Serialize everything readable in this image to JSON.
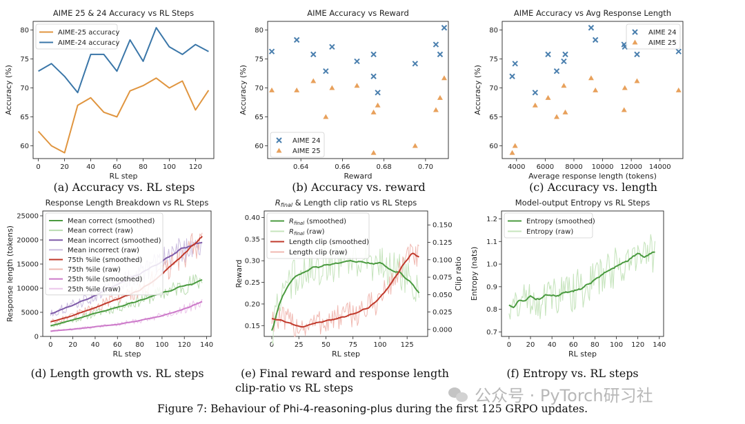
{
  "chart_data": [
    {
      "id": "a",
      "type": "line",
      "title": "AIME 25 & 24 Accuracy vs RL Steps",
      "xlabel": "RL step",
      "ylabel": "Accuracy (%)",
      "xlim": [
        -4,
        134
      ],
      "ylim": [
        57.8,
        81.5
      ],
      "xticks": [
        0,
        20,
        40,
        60,
        80,
        100,
        120
      ],
      "yticks": [
        60,
        65,
        70,
        75,
        80
      ],
      "legend": "top-left",
      "series": [
        {
          "name": "AIME-25 accuracy",
          "color": "#e0953f",
          "x": [
            0,
            10,
            20,
            30,
            40,
            50,
            60,
            70,
            80,
            90,
            100,
            110,
            120,
            130
          ],
          "y": [
            62.5,
            60.0,
            58.8,
            67.0,
            68.3,
            65.8,
            65.0,
            69.5,
            70.4,
            71.7,
            70.0,
            71.2,
            66.2,
            69.6
          ]
        },
        {
          "name": "AIME-24 accuracy",
          "color": "#3a76a8",
          "x": [
            0,
            10,
            20,
            30,
            40,
            50,
            60,
            70,
            80,
            90,
            100,
            110,
            120,
            130
          ],
          "y": [
            72.9,
            74.2,
            72.0,
            69.2,
            75.8,
            75.8,
            72.9,
            78.3,
            74.6,
            80.4,
            77.1,
            75.8,
            77.5,
            76.3
          ]
        }
      ]
    },
    {
      "id": "b",
      "type": "scatter",
      "title": "AIME Accuracy vs Reward",
      "xlabel": "Reward",
      "ylabel": "Accuracy (%)",
      "xlim": [
        0.624,
        0.711
      ],
      "ylim": [
        57.8,
        81.5
      ],
      "xticks": [
        0.64,
        0.66,
        0.68,
        0.7
      ],
      "xticklabels": [
        "0.64",
        "0.66",
        "0.68",
        "0.70"
      ],
      "yticks": [
        60,
        65,
        70,
        75,
        80
      ],
      "legend": "bottom-left",
      "series": [
        {
          "name": "AIME 24",
          "marker": "x",
          "color": "#4a7fae",
          "x": [
            0.626,
            0.638,
            0.646,
            0.652,
            0.655,
            0.667,
            0.675,
            0.675,
            0.677,
            0.695,
            0.705,
            0.707,
            0.709
          ],
          "y": [
            76.3,
            78.3,
            75.8,
            72.9,
            77.1,
            74.6,
            75.8,
            72.0,
            69.2,
            74.2,
            77.5,
            75.8,
            80.4
          ]
        },
        {
          "name": "AIME 25",
          "marker": "triangle",
          "color": "#e8a15c",
          "x": [
            0.626,
            0.638,
            0.646,
            0.652,
            0.655,
            0.667,
            0.675,
            0.675,
            0.677,
            0.695,
            0.705,
            0.707,
            0.709
          ],
          "y": [
            69.6,
            69.6,
            71.2,
            65.0,
            70.0,
            70.4,
            58.8,
            65.8,
            67.0,
            60.0,
            66.2,
            68.3,
            71.7
          ]
        }
      ]
    },
    {
      "id": "c",
      "type": "scatter",
      "title": "AIME Accuracy vs Avg Response Length",
      "xlabel": "Average response length (tokens)",
      "ylabel": "Accuracy (%)",
      "xlim": [
        3000,
        15600
      ],
      "ylim": [
        57.8,
        81.5
      ],
      "xticks": [
        4000,
        6000,
        8000,
        10000,
        12000,
        14000
      ],
      "yticks": [
        60,
        65,
        70,
        75,
        80
      ],
      "legend": "top-right",
      "series": [
        {
          "name": "AIME 24",
          "marker": "x",
          "color": "#4a7fae",
          "x": [
            3700,
            3900,
            5300,
            6200,
            6800,
            7300,
            7400,
            9200,
            9500,
            11500,
            11550,
            12400,
            15300
          ],
          "y": [
            72.0,
            74.2,
            69.2,
            75.8,
            72.9,
            74.6,
            75.8,
            80.4,
            78.3,
            77.5,
            77.1,
            75.8,
            76.3
          ]
        },
        {
          "name": "AIME 25",
          "marker": "triangle",
          "color": "#e8a15c",
          "x": [
            3700,
            3900,
            5300,
            6200,
            6800,
            7300,
            7400,
            9200,
            9500,
            11500,
            11550,
            12400,
            15300
          ],
          "y": [
            58.8,
            60.0,
            67.0,
            68.3,
            65.0,
            70.4,
            65.8,
            71.7,
            69.6,
            66.2,
            70.0,
            71.2,
            69.6
          ]
        }
      ]
    },
    {
      "id": "d",
      "type": "line",
      "title": "Response Length Breakdown vs RL Steps",
      "xlabel": "RL step",
      "ylabel": "Response length (tokens)",
      "xlim": [
        -7,
        144
      ],
      "ylim": [
        0,
        26000
      ],
      "xticks": [
        0,
        20,
        40,
        60,
        80,
        100,
        120,
        140
      ],
      "yticks": [
        0,
        5000,
        10000,
        15000,
        20000,
        25000
      ],
      "legend": "top-left",
      "series": [
        {
          "name": "Mean correct (smoothed)",
          "color": "#4a9a3f",
          "kind": "smoothed",
          "x": [
            0,
            20,
            40,
            60,
            80,
            100,
            120,
            136
          ],
          "y": [
            2200,
            3400,
            4800,
            6000,
            7500,
            9000,
            10500,
            11600
          ]
        },
        {
          "name": "Mean correct (raw)",
          "color": "#b9dcb0",
          "kind": "raw",
          "x": [
            0,
            20,
            40,
            60,
            80,
            100,
            120,
            136
          ],
          "y": [
            2200,
            3400,
            4800,
            6000,
            7500,
            9000,
            10500,
            11600
          ]
        },
        {
          "name": "Mean incorrect (smoothed)",
          "color": "#7e5aa8",
          "kind": "smoothed",
          "x": [
            0,
            20,
            40,
            60,
            80,
            100,
            120,
            136
          ],
          "y": [
            4700,
            6500,
            8500,
            10800,
            13000,
            15500,
            18500,
            19500
          ]
        },
        {
          "name": "Mean incorrect (raw)",
          "color": "#cbbddf",
          "kind": "raw",
          "x": [
            0,
            20,
            40,
            60,
            80,
            100,
            120,
            136
          ],
          "y": [
            4700,
            6500,
            8500,
            10800,
            13000,
            15500,
            18500,
            19500
          ]
        },
        {
          "name": "75th %ile (smoothed)",
          "color": "#c0392b",
          "kind": "smoothed",
          "x": [
            0,
            20,
            40,
            60,
            80,
            100,
            120,
            136
          ],
          "y": [
            3000,
            4300,
            6000,
            7800,
            9500,
            13000,
            17000,
            20800
          ]
        },
        {
          "name": "75th %ile (raw)",
          "color": "#efb8b1",
          "kind": "raw",
          "x": [
            0,
            20,
            40,
            60,
            80,
            100,
            120,
            136
          ],
          "y": [
            3000,
            4300,
            6000,
            7800,
            9500,
            13000,
            17000,
            20800
          ]
        },
        {
          "name": "25th %ile (smoothed)",
          "color": "#cc79c9",
          "kind": "smoothed",
          "x": [
            0,
            20,
            40,
            60,
            80,
            100,
            120,
            136
          ],
          "y": [
            1100,
            1500,
            2000,
            2500,
            3300,
            4300,
            5700,
            7200
          ]
        },
        {
          "name": "25th %ile (raw)",
          "color": "#ecc6ea",
          "kind": "raw",
          "x": [
            0,
            20,
            40,
            60,
            80,
            100,
            120,
            136
          ],
          "y": [
            1100,
            1500,
            2000,
            2500,
            3300,
            4300,
            5700,
            7200
          ]
        }
      ]
    },
    {
      "id": "e",
      "type": "line",
      "title": "R_final & Length clip ratio vs RL Steps",
      "xlabel": "RL step",
      "ylabel": "Reward",
      "y2label": "Clip ratio",
      "xlim": [
        -7,
        144
      ],
      "ylim": [
        0.125,
        0.415
      ],
      "y2lim": [
        -0.01,
        0.17
      ],
      "xticks": [
        0,
        25,
        50,
        75,
        100,
        125
      ],
      "yticks": [
        0.15,
        0.2,
        0.25,
        0.3,
        0.35,
        0.4
      ],
      "yticklabels": [
        "0.15",
        "0.20",
        "0.25",
        "0.30",
        "0.35",
        "0.40"
      ],
      "y2ticks": [
        0,
        0.025,
        0.05,
        0.075,
        0.1,
        0.125,
        0.15
      ],
      "y2ticklabels": [
        "0.000",
        "0.025",
        "0.050",
        "0.075",
        "0.100",
        "0.125",
        "0.150"
      ],
      "legend": "top-left",
      "series": [
        {
          "name": "R_final (smoothed)",
          "label": "R",
          "sub": "final",
          "suffix": " (smoothed)",
          "color": "#4a9a3f",
          "kind": "smoothed",
          "axis": "left",
          "x": [
            0,
            5,
            10,
            20,
            30,
            40,
            50,
            60,
            70,
            80,
            90,
            100,
            110,
            120,
            130,
            136
          ],
          "y": [
            0.135,
            0.185,
            0.22,
            0.26,
            0.275,
            0.285,
            0.29,
            0.295,
            0.3,
            0.298,
            0.295,
            0.295,
            0.28,
            0.27,
            0.245,
            0.225
          ]
        },
        {
          "name": "R_final (raw)",
          "label": "R",
          "sub": "final",
          "suffix": " (raw)",
          "color": "#c6e4bd",
          "kind": "raw",
          "axis": "left",
          "x": [
            0,
            5,
            10,
            20,
            30,
            40,
            50,
            60,
            70,
            80,
            90,
            100,
            110,
            120,
            130,
            136
          ],
          "y": [
            0.135,
            0.185,
            0.22,
            0.26,
            0.275,
            0.285,
            0.29,
            0.295,
            0.3,
            0.298,
            0.295,
            0.295,
            0.28,
            0.27,
            0.245,
            0.225
          ]
        },
        {
          "name": "Length clip (smoothed)",
          "label": "Length clip (smoothed)",
          "color": "#c0392b",
          "kind": "smoothed",
          "axis": "right",
          "x": [
            0,
            10,
            20,
            30,
            40,
            50,
            60,
            70,
            80,
            90,
            100,
            110,
            120,
            130,
            136
          ],
          "y": [
            0.017,
            0.013,
            0.007,
            0.005,
            0.009,
            0.012,
            0.016,
            0.02,
            0.025,
            0.032,
            0.045,
            0.065,
            0.09,
            0.11,
            0.102
          ]
        },
        {
          "name": "Length clip (raw)",
          "label": "Length clip (raw)",
          "color": "#f0b8b1",
          "kind": "raw",
          "axis": "right",
          "x": [
            0,
            10,
            20,
            30,
            40,
            50,
            60,
            70,
            80,
            90,
            100,
            110,
            120,
            130,
            136
          ],
          "y": [
            0.017,
            0.013,
            0.007,
            0.005,
            0.009,
            0.012,
            0.016,
            0.02,
            0.025,
            0.032,
            0.045,
            0.065,
            0.09,
            0.11,
            0.102
          ]
        }
      ]
    },
    {
      "id": "f",
      "type": "line",
      "title": "Model-output Entropy vs RL Steps",
      "xlabel": "RL step",
      "ylabel": "Entropy (nats)",
      "xlim": [
        -7,
        144
      ],
      "ylim": [
        0.68,
        1.235
      ],
      "xticks": [
        0,
        20,
        40,
        60,
        80,
        100,
        120,
        140
      ],
      "yticks": [
        0.7,
        0.8,
        0.9,
        1.0,
        1.1,
        1.2
      ],
      "yticklabels": [
        "0.7",
        "0.8",
        "0.9",
        "1.0",
        "1.1",
        "1.2"
      ],
      "legend": "top-left",
      "series": [
        {
          "name": "Entropy (smoothed)",
          "color": "#4a9a3f",
          "kind": "smoothed",
          "x": [
            0,
            5,
            10,
            15,
            20,
            25,
            30,
            40,
            50,
            60,
            70,
            80,
            90,
            100,
            110,
            120,
            125,
            130,
            136
          ],
          "y": [
            0.82,
            0.81,
            0.85,
            0.83,
            0.86,
            0.84,
            0.85,
            0.86,
            0.87,
            0.88,
            0.9,
            0.93,
            0.96,
            0.99,
            1.01,
            1.05,
            1.03,
            1.045,
            1.05
          ]
        },
        {
          "name": "Entropy (raw)",
          "color": "#c6e4bd",
          "kind": "raw",
          "x": [
            0,
            5,
            10,
            15,
            20,
            25,
            30,
            40,
            50,
            60,
            70,
            80,
            90,
            100,
            110,
            120,
            125,
            130,
            136
          ],
          "y": [
            0.82,
            0.81,
            0.85,
            0.83,
            0.86,
            0.84,
            0.85,
            0.86,
            0.87,
            0.88,
            0.9,
            0.93,
            0.96,
            0.99,
            1.01,
            1.05,
            1.03,
            1.045,
            1.05
          ]
        }
      ]
    }
  ],
  "captions": {
    "a": "(a) Accuracy vs. RL steps",
    "b": "(b) Accuracy vs. reward",
    "c": "(c) Accuracy vs. length",
    "d": "(d) Length growth vs. RL steps",
    "e_line1": "(e) Final reward and response length",
    "e_line2": "clip-ratio vs RL steps",
    "f": "(f) Entropy vs. RL steps"
  },
  "figure_caption": {
    "prefix": "Figure 7: Behaviour of ",
    "model": "Phi-4-reasoning-plus",
    "suffix": " during the first 125 GRPO updates."
  },
  "watermark": {
    "text": "公众号 · PyTorch研习社",
    "icon": "wechat-icon"
  }
}
